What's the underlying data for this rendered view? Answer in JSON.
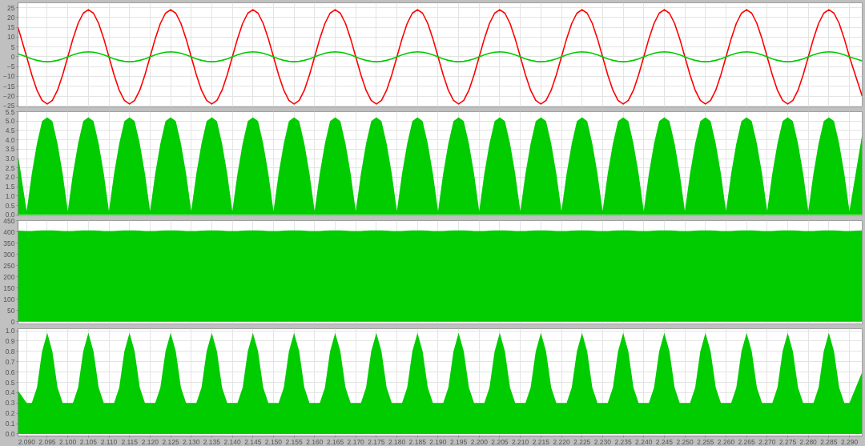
{
  "chart_data": [
    {
      "type": "line",
      "grid": true,
      "tick_labels": "y",
      "xlim": [
        2.0879,
        2.2931
      ],
      "ylim": [
        -25.5,
        27.5
      ],
      "xticks": [
        2.09,
        2.095,
        2.1,
        2.105,
        2.11,
        2.115,
        2.12,
        2.125,
        2.13,
        2.135,
        2.14,
        2.145,
        2.15,
        2.155,
        2.16,
        2.165,
        2.17,
        2.175,
        2.18,
        2.185,
        2.19,
        2.195,
        2.2,
        2.205,
        2.21,
        2.215,
        2.22,
        2.225,
        2.23,
        2.235,
        2.24,
        2.245,
        2.25,
        2.255,
        2.26,
        2.265,
        2.27,
        2.275,
        2.28,
        2.285,
        2.29
      ],
      "yticks": [
        -25,
        -20,
        -15,
        -10,
        -5,
        0,
        5,
        10,
        15,
        20,
        25
      ],
      "x": [
        2.0879,
        2.09,
        2.09125,
        2.0925,
        2.09375,
        2.095,
        2.09625,
        2.0975,
        2.09875,
        2.1,
        2.10125,
        2.1025,
        2.10375,
        2.105,
        2.10625,
        2.1075,
        2.10875,
        2.11,
        2.11125,
        2.1125,
        2.11375,
        2.115,
        2.11625,
        2.1175,
        2.11875,
        2.12,
        2.12125,
        2.1225,
        2.12375,
        2.125,
        2.12625,
        2.1275,
        2.12875,
        2.13,
        2.13125,
        2.1325,
        2.13375,
        2.135,
        2.13625,
        2.1375,
        2.13875,
        2.14,
        2.14125,
        2.1425,
        2.14375,
        2.145,
        2.14625,
        2.1475,
        2.14875,
        2.15,
        2.15125,
        2.1525,
        2.15375,
        2.155,
        2.15625,
        2.1575,
        2.15875,
        2.16,
        2.16125,
        2.1625,
        2.16375,
        2.165,
        2.16625,
        2.1675,
        2.16875,
        2.17,
        2.17125,
        2.1725,
        2.17375,
        2.175,
        2.17625,
        2.1775,
        2.17875,
        2.18,
        2.18125,
        2.1825,
        2.18375,
        2.185,
        2.18625,
        2.1875,
        2.18875,
        2.19,
        2.19125,
        2.1925,
        2.19375,
        2.195,
        2.19625,
        2.1975,
        2.19875,
        2.2,
        2.20125,
        2.2025,
        2.20375,
        2.205,
        2.20625,
        2.2075,
        2.20875,
        2.21,
        2.21125,
        2.2125,
        2.21375,
        2.215,
        2.21625,
        2.2175,
        2.21875,
        2.22,
        2.22125,
        2.2225,
        2.22375,
        2.225,
        2.22625,
        2.2275,
        2.22875,
        2.23,
        2.23125,
        2.2325,
        2.23375,
        2.235,
        2.23625,
        2.2375,
        2.23875,
        2.24,
        2.24125,
        2.2425,
        2.24375,
        2.245,
        2.24625,
        2.2475,
        2.24875,
        2.25,
        2.25125,
        2.2525,
        2.25375,
        2.255,
        2.25625,
        2.2575,
        2.25875,
        2.26,
        2.26125,
        2.2625,
        2.26375,
        2.265,
        2.26625,
        2.2675,
        2.26875,
        2.27,
        2.27125,
        2.2725,
        2.27375,
        2.275,
        2.27625,
        2.2775,
        2.27875,
        2.28,
        2.28125,
        2.2825,
        2.28375,
        2.285,
        2.28625,
        2.2875,
        2.28875,
        2.29,
        2.2931
      ],
      "series": [
        {
          "color": "#ff0000",
          "values": [
            15,
            0,
            -9.2,
            -17,
            -22.2,
            -24,
            -22.2,
            -17,
            -9.2,
            0,
            9.2,
            17,
            22.2,
            24,
            22.2,
            17,
            9.2,
            0,
            -9.2,
            -17,
            -22.2,
            -24,
            -22.2,
            -17,
            -9.2,
            0,
            9.2,
            17,
            22.2,
            24,
            22.2,
            17,
            9.2,
            0,
            -9.2,
            -17,
            -22.2,
            -24,
            -22.2,
            -17,
            -9.2,
            0,
            9.2,
            17,
            22.2,
            24,
            22.2,
            17,
            9.2,
            0,
            -9.2,
            -17,
            -22.2,
            -24,
            -22.2,
            -17,
            -9.2,
            0,
            9.2,
            17,
            22.2,
            24,
            22.2,
            17,
            9.2,
            0,
            -9.2,
            -17,
            -22.2,
            -24,
            -22.2,
            -17,
            -9.2,
            0,
            9.2,
            17,
            22.2,
            24,
            22.2,
            17,
            9.2,
            0,
            -9.2,
            -17,
            -22.2,
            -24,
            -22.2,
            -17,
            -9.2,
            0,
            9.2,
            17,
            22.2,
            24,
            22.2,
            17,
            9.2,
            0,
            -9.2,
            -17,
            -22.2,
            -24,
            -22.2,
            -17,
            -9.2,
            0,
            9.2,
            17,
            22.2,
            24,
            22.2,
            17,
            9.2,
            0,
            -9.2,
            -17,
            -22.2,
            -24,
            -22.2,
            -17,
            -9.2,
            0,
            9.2,
            17,
            22.2,
            24,
            22.2,
            17,
            9.2,
            0,
            -9.2,
            -17,
            -22.2,
            -24,
            -22.2,
            -17,
            -9.2,
            0,
            9.2,
            17,
            22.2,
            24,
            22.2,
            17,
            9.2,
            0,
            -9.2,
            -17,
            -22.2,
            -24,
            -22.2,
            -17,
            -9.2,
            0,
            9.2,
            17,
            22.2,
            24,
            22.2,
            17,
            9.2,
            0,
            -20
          ]
        },
        {
          "color": "#00cc00",
          "values": [
            1.5,
            0,
            -1,
            -1.8,
            -2.3,
            -2.5,
            -2.3,
            -1.8,
            -1,
            0,
            1,
            1.8,
            2.3,
            2.5,
            2.3,
            1.8,
            1,
            0,
            -1,
            -1.8,
            -2.3,
            -2.5,
            -2.3,
            -1.8,
            -1,
            0,
            1,
            1.8,
            2.3,
            2.5,
            2.3,
            1.8,
            1,
            0,
            -1,
            -1.8,
            -2.3,
            -2.5,
            -2.3,
            -1.8,
            -1,
            0,
            1,
            1.8,
            2.3,
            2.5,
            2.3,
            1.8,
            1,
            0,
            -1,
            -1.8,
            -2.3,
            -2.5,
            -2.3,
            -1.8,
            -1,
            0,
            1,
            1.8,
            2.3,
            2.5,
            2.3,
            1.8,
            1,
            0,
            -1,
            -1.8,
            -2.3,
            -2.5,
            -2.3,
            -1.8,
            -1,
            0,
            1,
            1.8,
            2.3,
            2.5,
            2.3,
            1.8,
            1,
            0,
            -1,
            -1.8,
            -2.3,
            -2.5,
            -2.3,
            -1.8,
            -1,
            0,
            1,
            1.8,
            2.3,
            2.5,
            2.3,
            1.8,
            1,
            0,
            -1,
            -1.8,
            -2.3,
            -2.5,
            -2.3,
            -1.8,
            -1,
            0,
            1,
            1.8,
            2.3,
            2.5,
            2.3,
            1.8,
            1,
            0,
            -1,
            -1.8,
            -2.3,
            -2.5,
            -2.3,
            -1.8,
            -1,
            0,
            1,
            1.8,
            2.3,
            2.5,
            2.3,
            1.8,
            1,
            0,
            -1,
            -1.8,
            -2.3,
            -2.5,
            -2.3,
            -1.8,
            -1,
            0,
            1,
            1.8,
            2.3,
            2.5,
            2.3,
            1.8,
            1,
            0,
            -1,
            -1.8,
            -2.3,
            -2.5,
            -2.3,
            -1.8,
            -1,
            0,
            1,
            1.8,
            2.3,
            2.5,
            2.3,
            1.8,
            1,
            0,
            -2.1
          ]
        }
      ]
    },
    {
      "type": "area",
      "grid": true,
      "tick_labels": "y",
      "xlim": [
        2.0879,
        2.2931
      ],
      "ylim": [
        -0.05,
        5.5
      ],
      "xticks": [
        2.09,
        2.095,
        2.1,
        2.105,
        2.11,
        2.115,
        2.12,
        2.125,
        2.13,
        2.135,
        2.14,
        2.145,
        2.15,
        2.155,
        2.16,
        2.165,
        2.17,
        2.175,
        2.18,
        2.185,
        2.19,
        2.195,
        2.2,
        2.205,
        2.21,
        2.215,
        2.22,
        2.225,
        2.23,
        2.235,
        2.24,
        2.245,
        2.25,
        2.255,
        2.26,
        2.265,
        2.27,
        2.275,
        2.28,
        2.285,
        2.29
      ],
      "yticks": [
        {
          "value": 0,
          "label": "0.0"
        },
        0.5,
        {
          "value": 1,
          "label": "1.0"
        },
        1.5,
        {
          "value": 2,
          "label": "2.0"
        },
        2.5,
        {
          "value": 3,
          "label": "3.0"
        },
        3.5,
        {
          "value": 4,
          "label": "4.0"
        },
        4.5,
        {
          "value": 5,
          "label": "5.0"
        },
        5.5
      ],
      "x": [
        2.0879,
        2.09,
        2.09125,
        2.0925,
        2.09375,
        2.095,
        2.09625,
        2.0975,
        2.09875,
        2.1,
        2.10125,
        2.1025,
        2.10375,
        2.105,
        2.10625,
        2.1075,
        2.10875,
        2.11,
        2.11125,
        2.1125,
        2.11375,
        2.115,
        2.11625,
        2.1175,
        2.11875,
        2.12,
        2.12125,
        2.1225,
        2.12375,
        2.125,
        2.12625,
        2.1275,
        2.12875,
        2.13,
        2.13125,
        2.1325,
        2.13375,
        2.135,
        2.13625,
        2.1375,
        2.13875,
        2.14,
        2.14125,
        2.1425,
        2.14375,
        2.145,
        2.14625,
        2.1475,
        2.14875,
        2.15,
        2.15125,
        2.1525,
        2.15375,
        2.155,
        2.15625,
        2.1575,
        2.15875,
        2.16,
        2.16125,
        2.1625,
        2.16375,
        2.165,
        2.16625,
        2.1675,
        2.16875,
        2.17,
        2.17125,
        2.1725,
        2.17375,
        2.175,
        2.17625,
        2.1775,
        2.17875,
        2.18,
        2.18125,
        2.1825,
        2.18375,
        2.185,
        2.18625,
        2.1875,
        2.18875,
        2.19,
        2.19125,
        2.1925,
        2.19375,
        2.195,
        2.19625,
        2.1975,
        2.19875,
        2.2,
        2.20125,
        2.2025,
        2.20375,
        2.205,
        2.20625,
        2.2075,
        2.20875,
        2.21,
        2.21125,
        2.2125,
        2.21375,
        2.215,
        2.21625,
        2.2175,
        2.21875,
        2.22,
        2.22125,
        2.2225,
        2.22375,
        2.225,
        2.22625,
        2.2275,
        2.22875,
        2.23,
        2.23125,
        2.2325,
        2.23375,
        2.235,
        2.23625,
        2.2375,
        2.23875,
        2.24,
        2.24125,
        2.2425,
        2.24375,
        2.245,
        2.24625,
        2.2475,
        2.24875,
        2.25,
        2.25125,
        2.2525,
        2.25375,
        2.255,
        2.25625,
        2.2575,
        2.25875,
        2.26,
        2.26125,
        2.2625,
        2.26375,
        2.265,
        2.26625,
        2.2675,
        2.26875,
        2.27,
        2.27125,
        2.2725,
        2.27375,
        2.275,
        2.27625,
        2.2775,
        2.27875,
        2.28,
        2.28125,
        2.2825,
        2.28375,
        2.285,
        2.28625,
        2.2875,
        2.28875,
        2.29,
        2.2931
      ],
      "series": [
        {
          "color": "#00cc00",
          "values": [
            3.2,
            0.2,
            2.2,
            3.8,
            5,
            5.2,
            5,
            3.8,
            2.2,
            0.2,
            2.2,
            3.8,
            5,
            5.2,
            5,
            3.8,
            2.2,
            0.2,
            2.2,
            3.8,
            5,
            5.2,
            5,
            3.8,
            2.2,
            0.2,
            2.2,
            3.8,
            5,
            5.2,
            5,
            3.8,
            2.2,
            0.2,
            2.2,
            3.8,
            5,
            5.2,
            5,
            3.8,
            2.2,
            0.2,
            2.2,
            3.8,
            5,
            5.2,
            5,
            3.8,
            2.2,
            0.2,
            2.2,
            3.8,
            5,
            5.2,
            5,
            3.8,
            2.2,
            0.2,
            2.2,
            3.8,
            5,
            5.2,
            5,
            3.8,
            2.2,
            0.2,
            2.2,
            3.8,
            5,
            5.2,
            5,
            3.8,
            2.2,
            0.2,
            2.2,
            3.8,
            5,
            5.2,
            5,
            3.8,
            2.2,
            0.2,
            2.2,
            3.8,
            5,
            5.2,
            5,
            3.8,
            2.2,
            0.2,
            2.2,
            3.8,
            5,
            5.2,
            5,
            3.8,
            2.2,
            0.2,
            2.2,
            3.8,
            5,
            5.2,
            5,
            3.8,
            2.2,
            0.2,
            2.2,
            3.8,
            5,
            5.2,
            5,
            3.8,
            2.2,
            0.2,
            2.2,
            3.8,
            5,
            5.2,
            5,
            3.8,
            2.2,
            0.2,
            2.2,
            3.8,
            5,
            5.2,
            5,
            3.8,
            2.2,
            0.2,
            2.2,
            3.8,
            5,
            5.2,
            5,
            3.8,
            2.2,
            0.2,
            2.2,
            3.8,
            5,
            5.2,
            5,
            3.8,
            2.2,
            0.2,
            2.2,
            3.8,
            5,
            5.2,
            5,
            3.8,
            2.2,
            0.2,
            2.2,
            3.8,
            5,
            5.2,
            5,
            3.8,
            2.2,
            0.2,
            4.3
          ]
        }
      ]
    },
    {
      "type": "area",
      "grid": true,
      "tick_labels": "y",
      "xlim": [
        2.0879,
        2.2931
      ],
      "ylim": [
        -10,
        450
      ],
      "xticks": [
        2.09,
        2.095,
        2.1,
        2.105,
        2.11,
        2.115,
        2.12,
        2.125,
        2.13,
        2.135,
        2.14,
        2.145,
        2.15,
        2.155,
        2.16,
        2.165,
        2.17,
        2.175,
        2.18,
        2.185,
        2.19,
        2.195,
        2.2,
        2.205,
        2.21,
        2.215,
        2.22,
        2.225,
        2.23,
        2.235,
        2.24,
        2.245,
        2.25,
        2.255,
        2.26,
        2.265,
        2.27,
        2.275,
        2.28,
        2.285,
        2.29
      ],
      "yticks": [
        0,
        50,
        100,
        150,
        200,
        250,
        300,
        350,
        400,
        450
      ],
      "x": [
        2.0879,
        2.09,
        2.09125,
        2.0925,
        2.09375,
        2.095,
        2.09625,
        2.0975,
        2.09875,
        2.1,
        2.10125,
        2.1025,
        2.10375,
        2.105,
        2.10625,
        2.1075,
        2.10875,
        2.11,
        2.11125,
        2.1125,
        2.11375,
        2.115,
        2.11625,
        2.1175,
        2.11875,
        2.12,
        2.12125,
        2.1225,
        2.12375,
        2.125,
        2.12625,
        2.1275,
        2.12875,
        2.13,
        2.13125,
        2.1325,
        2.13375,
        2.135,
        2.13625,
        2.1375,
        2.13875,
        2.14,
        2.14125,
        2.1425,
        2.14375,
        2.145,
        2.14625,
        2.1475,
        2.14875,
        2.15,
        2.15125,
        2.1525,
        2.15375,
        2.155,
        2.15625,
        2.1575,
        2.15875,
        2.16,
        2.16125,
        2.1625,
        2.16375,
        2.165,
        2.16625,
        2.1675,
        2.16875,
        2.17,
        2.17125,
        2.1725,
        2.17375,
        2.175,
        2.17625,
        2.1775,
        2.17875,
        2.18,
        2.18125,
        2.1825,
        2.18375,
        2.185,
        2.18625,
        2.1875,
        2.18875,
        2.19,
        2.19125,
        2.1925,
        2.19375,
        2.195,
        2.19625,
        2.1975,
        2.19875,
        2.2,
        2.20125,
        2.2025,
        2.20375,
        2.205,
        2.20625,
        2.2075,
        2.20875,
        2.21,
        2.21125,
        2.2125,
        2.21375,
        2.215,
        2.21625,
        2.2175,
        2.21875,
        2.22,
        2.22125,
        2.2225,
        2.22375,
        2.225,
        2.22625,
        2.2275,
        2.22875,
        2.23,
        2.23125,
        2.2325,
        2.23375,
        2.235,
        2.23625,
        2.2375,
        2.23875,
        2.24,
        2.24125,
        2.2425,
        2.24375,
        2.245,
        2.24625,
        2.2475,
        2.24875,
        2.25,
        2.25125,
        2.2525,
        2.25375,
        2.255,
        2.25625,
        2.2575,
        2.25875,
        2.26,
        2.26125,
        2.2625,
        2.26375,
        2.265,
        2.26625,
        2.2675,
        2.26875,
        2.27,
        2.27125,
        2.2725,
        2.27375,
        2.275,
        2.27625,
        2.2775,
        2.27875,
        2.28,
        2.28125,
        2.2825,
        2.28375,
        2.285,
        2.28625,
        2.2875,
        2.28875,
        2.29,
        2.2931
      ],
      "series": [
        {
          "color": "#00cc00",
          "values": [
            405,
            404,
            404,
            405,
            406,
            406,
            406,
            405,
            404,
            404,
            404,
            405,
            406,
            406,
            406,
            405,
            404,
            404,
            404,
            405,
            406,
            406,
            406,
            405,
            404,
            404,
            404,
            405,
            406,
            406,
            406,
            405,
            404,
            404,
            404,
            405,
            406,
            406,
            406,
            405,
            404,
            404,
            404,
            405,
            406,
            406,
            406,
            405,
            404,
            404,
            404,
            405,
            406,
            406,
            406,
            405,
            404,
            404,
            404,
            405,
            406,
            406,
            406,
            405,
            404,
            404,
            404,
            405,
            406,
            406,
            406,
            405,
            404,
            404,
            404,
            405,
            406,
            406,
            406,
            405,
            404,
            404,
            404,
            405,
            406,
            406,
            406,
            405,
            404,
            404,
            404,
            405,
            406,
            406,
            406,
            405,
            404,
            404,
            404,
            405,
            406,
            406,
            406,
            405,
            404,
            404,
            404,
            405,
            406,
            406,
            406,
            405,
            404,
            404,
            404,
            405,
            406,
            406,
            406,
            405,
            404,
            404,
            404,
            405,
            406,
            406,
            406,
            405,
            404,
            404,
            404,
            405,
            406,
            406,
            406,
            405,
            404,
            404,
            404,
            405,
            406,
            406,
            406,
            405,
            404,
            404,
            404,
            405,
            406,
            406,
            406,
            405,
            404,
            404,
            404,
            405,
            406,
            406,
            406,
            405,
            404,
            404,
            406
          ]
        }
      ]
    },
    {
      "type": "area",
      "grid": true,
      "xlim": [
        2.0879,
        2.2931
      ],
      "ylim": [
        -0.02,
        1.02
      ],
      "xticks": [
        {
          "value": 2.09,
          "label": "2.090"
        },
        {
          "value": 2.095,
          "label": "2.095"
        },
        {
          "value": 2.1,
          "label": "2.100"
        },
        {
          "value": 2.105,
          "label": "2.105"
        },
        {
          "value": 2.11,
          "label": "2.110"
        },
        {
          "value": 2.115,
          "label": "2.115"
        },
        {
          "value": 2.12,
          "label": "2.120"
        },
        {
          "value": 2.125,
          "label": "2.125"
        },
        {
          "value": 2.13,
          "label": "2.130"
        },
        {
          "value": 2.135,
          "label": "2.135"
        },
        {
          "value": 2.14,
          "label": "2.140"
        },
        {
          "value": 2.145,
          "label": "2.145"
        },
        {
          "value": 2.15,
          "label": "2.150"
        },
        {
          "value": 2.155,
          "label": "2.155"
        },
        {
          "value": 2.16,
          "label": "2.160"
        },
        {
          "value": 2.165,
          "label": "2.165"
        },
        {
          "value": 2.17,
          "label": "2.170"
        },
        {
          "value": 2.175,
          "label": "2.175"
        },
        {
          "value": 2.18,
          "label": "2.180"
        },
        {
          "value": 2.185,
          "label": "2.185"
        },
        {
          "value": 2.19,
          "label": "2.190"
        },
        {
          "value": 2.195,
          "label": "2.195"
        },
        {
          "value": 2.2,
          "label": "2.200"
        },
        {
          "value": 2.205,
          "label": "2.205"
        },
        {
          "value": 2.21,
          "label": "2.210"
        },
        {
          "value": 2.215,
          "label": "2.215"
        },
        {
          "value": 2.22,
          "label": "2.220"
        },
        {
          "value": 2.225,
          "label": "2.225"
        },
        {
          "value": 2.23,
          "label": "2.230"
        },
        {
          "value": 2.235,
          "label": "2.235"
        },
        {
          "value": 2.24,
          "label": "2.240"
        },
        {
          "value": 2.245,
          "label": "2.245"
        },
        {
          "value": 2.25,
          "label": "2.250"
        },
        {
          "value": 2.255,
          "label": "2.255"
        },
        {
          "value": 2.26,
          "label": "2.260"
        },
        {
          "value": 2.265,
          "label": "2.265"
        },
        {
          "value": 2.27,
          "label": "2.270"
        },
        {
          "value": 2.275,
          "label": "2.275"
        },
        {
          "value": 2.28,
          "label": "2.280"
        },
        {
          "value": 2.285,
          "label": "2.285"
        },
        {
          "value": 2.29,
          "label": "2.290"
        }
      ],
      "yticks": [
        {
          "value": 0,
          "label": "0.0"
        },
        0.1,
        0.2,
        0.3,
        0.4,
        0.5,
        0.6,
        0.7,
        0.8,
        0.9,
        {
          "value": 1,
          "label": "1.0"
        }
      ],
      "x": [
        2.0879,
        2.09,
        2.09125,
        2.0925,
        2.09375,
        2.095,
        2.09625,
        2.0975,
        2.09875,
        2.1,
        2.10125,
        2.1025,
        2.10375,
        2.105,
        2.10625,
        2.1075,
        2.10875,
        2.11,
        2.11125,
        2.1125,
        2.11375,
        2.115,
        2.11625,
        2.1175,
        2.11875,
        2.12,
        2.12125,
        2.1225,
        2.12375,
        2.125,
        2.12625,
        2.1275,
        2.12875,
        2.13,
        2.13125,
        2.1325,
        2.13375,
        2.135,
        2.13625,
        2.1375,
        2.13875,
        2.14,
        2.14125,
        2.1425,
        2.14375,
        2.145,
        2.14625,
        2.1475,
        2.14875,
        2.15,
        2.15125,
        2.1525,
        2.15375,
        2.155,
        2.15625,
        2.1575,
        2.15875,
        2.16,
        2.16125,
        2.1625,
        2.16375,
        2.165,
        2.16625,
        2.1675,
        2.16875,
        2.17,
        2.17125,
        2.1725,
        2.17375,
        2.175,
        2.17625,
        2.1775,
        2.17875,
        2.18,
        2.18125,
        2.1825,
        2.18375,
        2.185,
        2.18625,
        2.1875,
        2.18875,
        2.19,
        2.19125,
        2.1925,
        2.19375,
        2.195,
        2.19625,
        2.1975,
        2.19875,
        2.2,
        2.20125,
        2.2025,
        2.20375,
        2.205,
        2.20625,
        2.2075,
        2.20875,
        2.21,
        2.21125,
        2.2125,
        2.21375,
        2.215,
        2.21625,
        2.2175,
        2.21875,
        2.22,
        2.22125,
        2.2225,
        2.22375,
        2.225,
        2.22625,
        2.2275,
        2.22875,
        2.23,
        2.23125,
        2.2325,
        2.23375,
        2.235,
        2.23625,
        2.2375,
        2.23875,
        2.24,
        2.24125,
        2.2425,
        2.24375,
        2.245,
        2.24625,
        2.2475,
        2.24875,
        2.25,
        2.25125,
        2.2525,
        2.25375,
        2.255,
        2.25625,
        2.2575,
        2.25875,
        2.26,
        2.26125,
        2.2625,
        2.26375,
        2.265,
        2.26625,
        2.2675,
        2.26875,
        2.27,
        2.27125,
        2.2725,
        2.27375,
        2.275,
        2.27625,
        2.2775,
        2.27875,
        2.28,
        2.28125,
        2.2825,
        2.28375,
        2.285,
        2.28625,
        2.2875,
        2.28875,
        2.29,
        2.2931
      ],
      "series": [
        {
          "color": "#00cc00",
          "values": [
            0.42,
            0.3,
            0.3,
            0.45,
            0.8,
            0.98,
            0.8,
            0.45,
            0.3,
            0.3,
            0.3,
            0.45,
            0.8,
            0.98,
            0.8,
            0.45,
            0.3,
            0.3,
            0.3,
            0.45,
            0.8,
            0.98,
            0.8,
            0.45,
            0.3,
            0.3,
            0.3,
            0.45,
            0.8,
            0.98,
            0.8,
            0.45,
            0.3,
            0.3,
            0.3,
            0.45,
            0.8,
            0.98,
            0.8,
            0.45,
            0.3,
            0.3,
            0.3,
            0.45,
            0.8,
            0.98,
            0.8,
            0.45,
            0.3,
            0.3,
            0.3,
            0.45,
            0.8,
            0.98,
            0.8,
            0.45,
            0.3,
            0.3,
            0.3,
            0.45,
            0.8,
            0.98,
            0.8,
            0.45,
            0.3,
            0.3,
            0.3,
            0.45,
            0.8,
            0.98,
            0.8,
            0.45,
            0.3,
            0.3,
            0.3,
            0.45,
            0.8,
            0.98,
            0.8,
            0.45,
            0.3,
            0.3,
            0.3,
            0.45,
            0.8,
            0.98,
            0.8,
            0.45,
            0.3,
            0.3,
            0.3,
            0.45,
            0.8,
            0.98,
            0.8,
            0.45,
            0.3,
            0.3,
            0.3,
            0.45,
            0.8,
            0.98,
            0.8,
            0.45,
            0.3,
            0.3,
            0.3,
            0.45,
            0.8,
            0.98,
            0.8,
            0.45,
            0.3,
            0.3,
            0.3,
            0.45,
            0.8,
            0.98,
            0.8,
            0.45,
            0.3,
            0.3,
            0.3,
            0.45,
            0.8,
            0.98,
            0.8,
            0.45,
            0.3,
            0.3,
            0.3,
            0.45,
            0.8,
            0.98,
            0.8,
            0.45,
            0.3,
            0.3,
            0.3,
            0.45,
            0.8,
            0.98,
            0.8,
            0.45,
            0.3,
            0.3,
            0.3,
            0.45,
            0.8,
            0.98,
            0.8,
            0.45,
            0.3,
            0.3,
            0.3,
            0.45,
            0.8,
            0.98,
            0.8,
            0.45,
            0.3,
            0.3,
            0.6
          ]
        }
      ]
    }
  ]
}
